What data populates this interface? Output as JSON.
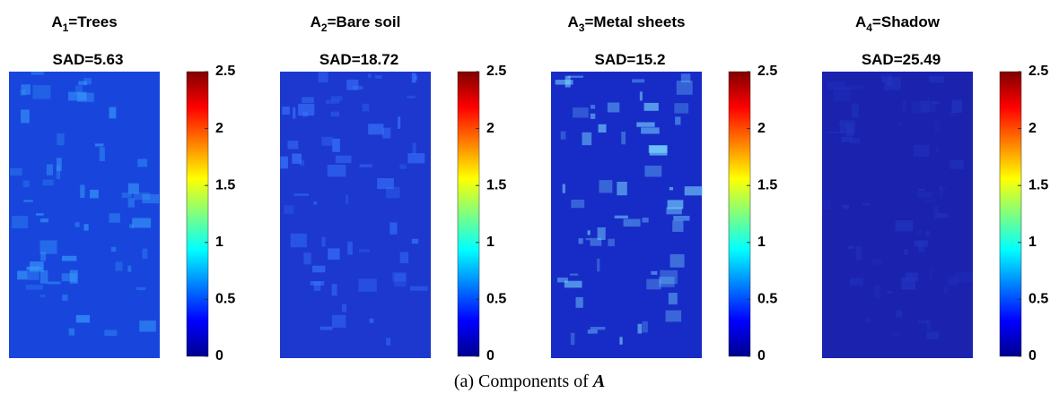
{
  "panels": [
    {
      "title": {
        "symbol": "A",
        "subscript": "1",
        "text": "=Trees"
      },
      "sad": "SAD=5.63"
    },
    {
      "title": {
        "symbol": "A",
        "subscript": "2",
        "text": "=Bare soil"
      },
      "sad": "SAD=18.72"
    },
    {
      "title": {
        "symbol": "A",
        "subscript": "3",
        "text": "=Metal sheets"
      },
      "sad": "SAD=15.2"
    },
    {
      "title": {
        "symbol": "A",
        "subscript": "4",
        "text": "=Shadow"
      },
      "sad": "SAD=25.49"
    }
  ],
  "colorbar": {
    "lim": [
      0,
      2.5
    ],
    "ticks": [
      0,
      0.5,
      1,
      1.5,
      2,
      2.5
    ]
  },
  "caption": {
    "text": "(a) Components of ",
    "symbol": "A"
  }
}
